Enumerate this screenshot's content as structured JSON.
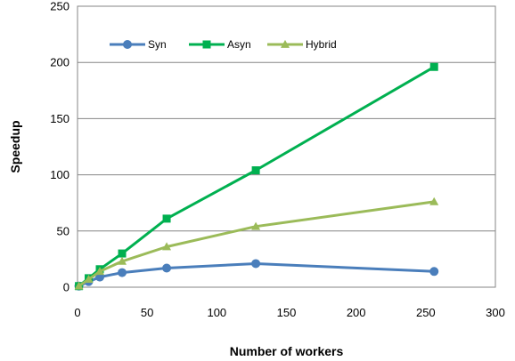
{
  "chart_data": {
    "type": "line",
    "title": "",
    "xlabel": "Number of workers",
    "ylabel": "Speedup",
    "xlim": [
      0,
      300
    ],
    "ylim": [
      0,
      250
    ],
    "xticks": [
      0,
      50,
      100,
      150,
      200,
      250,
      300
    ],
    "yticks": [
      0,
      50,
      100,
      150,
      200,
      250
    ],
    "grid": "horizontal",
    "legend_position": "top-left-inside",
    "series": [
      {
        "name": "Syn",
        "color": "#4a7ebb",
        "marker": "circle",
        "x": [
          1,
          8,
          16,
          32,
          64,
          128,
          256
        ],
        "y": [
          1,
          5,
          9,
          13,
          17,
          21,
          14
        ]
      },
      {
        "name": "Asyn",
        "color": "#00b050",
        "marker": "square",
        "x": [
          1,
          8,
          16,
          32,
          64,
          128,
          256
        ],
        "y": [
          1,
          8,
          16,
          30,
          61,
          104,
          196
        ]
      },
      {
        "name": "Hybrid",
        "color": "#9bbb59",
        "marker": "triangle",
        "x": [
          1,
          8,
          16,
          32,
          64,
          128,
          256
        ],
        "y": [
          1,
          7,
          14,
          23,
          36,
          54,
          76
        ]
      }
    ]
  }
}
